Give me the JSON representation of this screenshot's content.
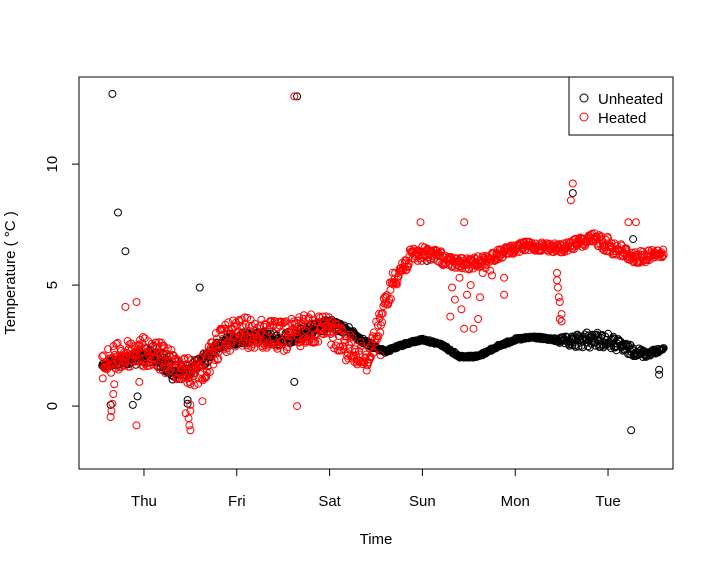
{
  "chart_data": {
    "type": "scatter",
    "title": "",
    "xlabel": "Time",
    "ylabel": "Temperature ( °C )",
    "xlim": [
      -0.7,
      5.7
    ],
    "ylim": [
      -2.6,
      13.6
    ],
    "xticks": [
      0,
      1,
      2,
      3,
      4,
      5
    ],
    "xtick_labels": [
      "Thu",
      "Fri",
      "Sat",
      "Sun",
      "Mon",
      "Tue"
    ],
    "yticks": [
      0,
      5,
      10
    ],
    "ytick_labels": [
      "0",
      "5",
      "10"
    ],
    "legend": {
      "position": "top-right",
      "entries": [
        "Unheated",
        "Heated"
      ]
    },
    "series": [
      {
        "name": "Unheated",
        "color": "#000000",
        "marker": "open-circle",
        "trend": [
          [
            -0.45,
            1.8
          ],
          [
            -0.3,
            2.0
          ],
          [
            -0.1,
            2.2
          ],
          [
            0.1,
            2.5
          ],
          [
            0.3,
            2.0
          ],
          [
            0.45,
            1.7
          ],
          [
            0.55,
            1.9
          ],
          [
            0.7,
            2.4
          ],
          [
            0.9,
            3.0
          ],
          [
            1.2,
            3.1
          ],
          [
            1.5,
            3.0
          ],
          [
            1.8,
            3.4
          ],
          [
            2.0,
            3.6
          ],
          [
            2.2,
            3.3
          ],
          [
            2.4,
            2.7
          ],
          [
            2.6,
            2.3
          ],
          [
            2.8,
            2.6
          ],
          [
            3.0,
            2.8
          ],
          [
            3.2,
            2.6
          ],
          [
            3.4,
            2.1
          ],
          [
            3.6,
            2.1
          ],
          [
            3.8,
            2.5
          ],
          [
            4.0,
            2.8
          ],
          [
            4.2,
            2.9
          ],
          [
            4.4,
            2.8
          ],
          [
            4.6,
            2.9
          ],
          [
            4.8,
            3.1
          ],
          [
            5.0,
            3.0
          ],
          [
            5.2,
            2.6
          ],
          [
            5.4,
            2.3
          ],
          [
            5.6,
            2.4
          ]
        ],
        "band": [
          [
            -0.45,
            0.2
          ],
          [
            0.3,
            0.9
          ],
          [
            0.5,
            0.6
          ],
          [
            0.8,
            0.5
          ],
          [
            1.9,
            0.5
          ],
          [
            2.6,
            0.1
          ],
          [
            4.4,
            0.1
          ],
          [
            4.6,
            0.5
          ],
          [
            4.8,
            0.7
          ],
          [
            5.2,
            0.5
          ],
          [
            5.6,
            0.1
          ]
        ],
        "outliers": [
          [
            -0.34,
            12.9
          ],
          [
            -0.28,
            8.0
          ],
          [
            -0.2,
            6.4
          ],
          [
            -0.36,
            0.05
          ],
          [
            -0.12,
            0.05
          ],
          [
            -0.07,
            0.4
          ],
          [
            0.47,
            0.1
          ],
          [
            0.47,
            0.25
          ],
          [
            0.6,
            4.9
          ],
          [
            1.62,
            1.0
          ],
          [
            1.65,
            12.8
          ],
          [
            3.05,
            6.0
          ],
          [
            4.62,
            8.8
          ],
          [
            5.25,
            -1.0
          ],
          [
            5.27,
            6.9
          ],
          [
            5.55,
            1.5
          ],
          [
            5.55,
            1.3
          ]
        ]
      },
      {
        "name": "Heated",
        "color": "#ff0000",
        "marker": "open-circle",
        "trend": [
          [
            -0.45,
            2.3
          ],
          [
            -0.3,
            2.6
          ],
          [
            -0.1,
            2.9
          ],
          [
            0.1,
            2.8
          ],
          [
            0.3,
            2.4
          ],
          [
            0.5,
            2.0
          ],
          [
            0.65,
            2.3
          ],
          [
            0.8,
            3.2
          ],
          [
            1.0,
            3.7
          ],
          [
            1.3,
            3.6
          ],
          [
            1.5,
            3.5
          ],
          [
            1.8,
            3.9
          ],
          [
            2.0,
            3.8
          ],
          [
            2.2,
            3.0
          ],
          [
            2.4,
            2.5
          ],
          [
            2.5,
            3.5
          ],
          [
            2.7,
            5.8
          ],
          [
            2.9,
            6.6
          ],
          [
            3.1,
            6.6
          ],
          [
            3.3,
            6.2
          ],
          [
            3.5,
            6.1
          ],
          [
            3.7,
            6.3
          ],
          [
            3.9,
            6.6
          ],
          [
            4.1,
            6.8
          ],
          [
            4.3,
            6.8
          ],
          [
            4.5,
            6.7
          ],
          [
            4.7,
            7.0
          ],
          [
            4.9,
            7.2
          ],
          [
            5.1,
            6.8
          ],
          [
            5.3,
            6.4
          ],
          [
            5.6,
            6.5
          ]
        ],
        "band": [
          [
            -0.45,
            1.2
          ],
          [
            0.0,
            1.3
          ],
          [
            0.3,
            1.2
          ],
          [
            0.6,
            1.3
          ],
          [
            1.0,
            1.3
          ],
          [
            1.7,
            1.3
          ],
          [
            2.2,
            1.2
          ],
          [
            2.5,
            1.1
          ],
          [
            2.7,
            0.9
          ],
          [
            3.0,
            0.6
          ],
          [
            3.4,
            0.5
          ],
          [
            4.0,
            0.4
          ],
          [
            4.6,
            0.4
          ],
          [
            5.0,
            0.7
          ],
          [
            5.6,
            0.4
          ]
        ],
        "outliers": [
          [
            -0.36,
            -0.45
          ],
          [
            -0.35,
            -0.2
          ],
          [
            -0.34,
            0.1
          ],
          [
            -0.33,
            0.5
          ],
          [
            -0.32,
            0.9
          ],
          [
            -0.2,
            4.1
          ],
          [
            -0.08,
            4.3
          ],
          [
            -0.08,
            -0.8
          ],
          [
            -0.05,
            1.0
          ],
          [
            0.45,
            -0.3
          ],
          [
            0.48,
            -0.5
          ],
          [
            0.49,
            -0.8
          ],
          [
            0.5,
            -1.0
          ],
          [
            0.5,
            -0.2
          ],
          [
            0.5,
            0.05
          ],
          [
            0.63,
            0.2
          ],
          [
            0.67,
            1.2
          ],
          [
            1.62,
            12.8
          ],
          [
            1.65,
            0.0
          ],
          [
            1.7,
            3.3
          ],
          [
            2.55,
            2.1
          ],
          [
            2.98,
            7.6
          ],
          [
            3.3,
            3.7
          ],
          [
            3.32,
            4.9
          ],
          [
            3.35,
            4.4
          ],
          [
            3.4,
            5.3
          ],
          [
            3.42,
            4.0
          ],
          [
            3.45,
            3.2
          ],
          [
            3.45,
            7.6
          ],
          [
            3.48,
            4.6
          ],
          [
            3.52,
            5.0
          ],
          [
            3.55,
            3.2
          ],
          [
            3.6,
            3.6
          ],
          [
            3.62,
            4.5
          ],
          [
            3.65,
            5.5
          ],
          [
            3.68,
            5.7
          ],
          [
            3.73,
            5.6
          ],
          [
            3.75,
            5.4
          ],
          [
            3.88,
            5.3
          ],
          [
            3.88,
            4.6
          ],
          [
            4.45,
            5.5
          ],
          [
            4.45,
            5.2
          ],
          [
            4.46,
            4.9
          ],
          [
            4.47,
            4.5
          ],
          [
            4.48,
            4.3
          ],
          [
            4.5,
            3.8
          ],
          [
            4.5,
            3.5
          ],
          [
            4.48,
            3.6
          ],
          [
            4.62,
            9.2
          ],
          [
            4.6,
            8.5
          ],
          [
            5.22,
            7.6
          ],
          [
            5.3,
            7.6
          ]
        ]
      }
    ]
  }
}
